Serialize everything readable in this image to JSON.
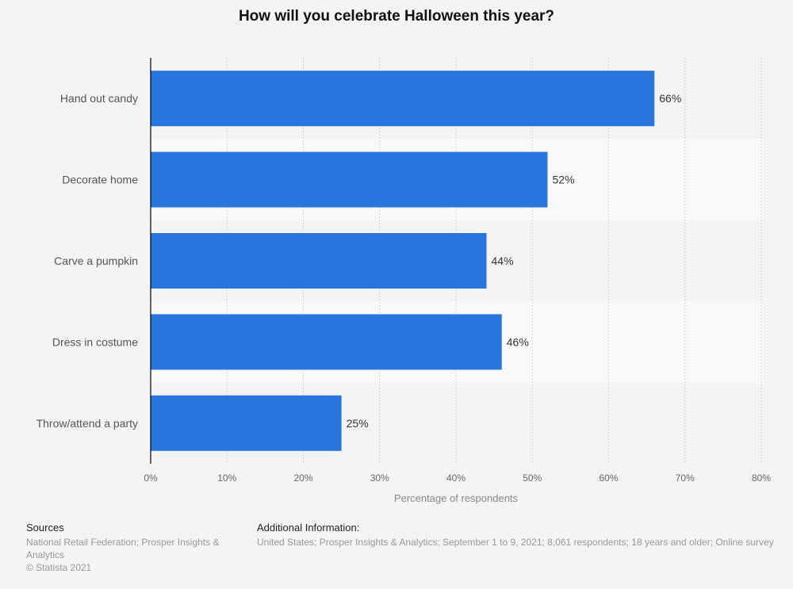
{
  "chart_data": {
    "type": "bar",
    "orientation": "horizontal",
    "title": "How will you celebrate Halloween this year?",
    "categories": [
      "Hand out candy",
      "Decorate home",
      "Carve a pumpkin",
      "Dress in costume",
      "Throw/attend a party"
    ],
    "values": [
      66,
      52,
      44,
      46,
      25
    ],
    "value_labels": [
      "66%",
      "52%",
      "44%",
      "46%",
      "25%"
    ],
    "xlabel": "Percentage of respondents",
    "ylabel": "",
    "xlim": [
      0,
      80
    ],
    "xticks": [
      0,
      10,
      20,
      30,
      40,
      50,
      60,
      70,
      80
    ],
    "xtick_labels": [
      "0%",
      "10%",
      "20%",
      "30%",
      "40%",
      "50%",
      "60%",
      "70%",
      "80%"
    ],
    "grid": true,
    "bar_color": "#2876dd"
  },
  "footer": {
    "sources_heading": "Sources",
    "sources_text": "National Retail Federation; Prosper Insights & Analytics",
    "copyright": "© Statista 2021",
    "additional_heading": "Additional Information:",
    "additional_text": "United States; Prosper Insights & Analytics; September 1 to 9, 2021; 8,061 respondents; 18 years and older; Online survey"
  }
}
